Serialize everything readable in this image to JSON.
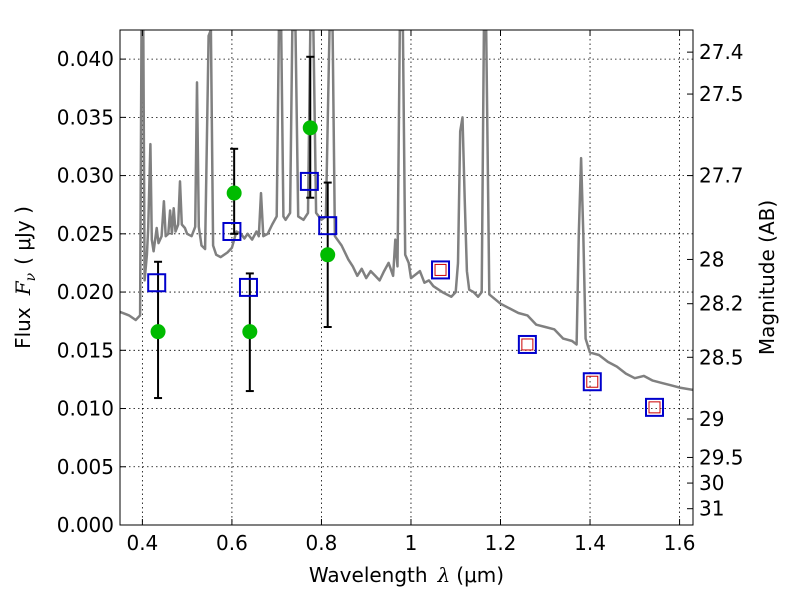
{
  "chart_data": {
    "type": "scatter",
    "xlabel_text": "Wavelength",
    "xlabel_math": "λ",
    "xlabel_unit": "(μm)",
    "ylabel_text": "Flux",
    "ylabel_math": "F",
    "ylabel_sub": "ν",
    "ylabel_unit": "( μJy )",
    "y2label": "Magnitude (AB)",
    "xlim": [
      0.35,
      1.63
    ],
    "ylim": [
      0.0,
      0.0425
    ],
    "grid": true,
    "x_ticks": [
      {
        "v": 0.4,
        "label": "0.4"
      },
      {
        "v": 0.6,
        "label": "0.6"
      },
      {
        "v": 0.8,
        "label": "0.8"
      },
      {
        "v": 1.0,
        "label": "1"
      },
      {
        "v": 1.2,
        "label": "1.2"
      },
      {
        "v": 1.4,
        "label": "1.4"
      },
      {
        "v": 1.6,
        "label": "1.6"
      }
    ],
    "y_ticks": [
      {
        "v": 0.0,
        "label": "0.000"
      },
      {
        "v": 0.005,
        "label": "0.005"
      },
      {
        "v": 0.01,
        "label": "0.010"
      },
      {
        "v": 0.015,
        "label": "0.015"
      },
      {
        "v": 0.02,
        "label": "0.020"
      },
      {
        "v": 0.025,
        "label": "0.025"
      },
      {
        "v": 0.03,
        "label": "0.030"
      },
      {
        "v": 0.035,
        "label": "0.035"
      },
      {
        "v": 0.04,
        "label": "0.040"
      }
    ],
    "mag_ticks": [
      {
        "v": 0.0406,
        "label": "27.4"
      },
      {
        "v": 0.037,
        "label": "27.5"
      },
      {
        "v": 0.03,
        "label": "27.7"
      },
      {
        "v": 0.0228,
        "label": "28"
      },
      {
        "v": 0.019,
        "label": "28.2"
      },
      {
        "v": 0.0144,
        "label": "28.5"
      },
      {
        "v": 0.0091,
        "label": "29"
      },
      {
        "v": 0.0058,
        "label": "29.5"
      },
      {
        "v": 0.0036,
        "label": "30"
      },
      {
        "v": 0.0014,
        "label": "31"
      }
    ],
    "model_spectrum": {
      "color": "#808080",
      "points": [
        [
          0.35,
          0.0183
        ],
        [
          0.37,
          0.018
        ],
        [
          0.385,
          0.0176
        ],
        [
          0.395,
          0.018
        ],
        [
          0.398,
          0.0425
        ],
        [
          0.402,
          0.0425
        ],
        [
          0.405,
          0.021
        ],
        [
          0.41,
          0.0232
        ],
        [
          0.413,
          0.0255
        ],
        [
          0.418,
          0.0327
        ],
        [
          0.421,
          0.0245
        ],
        [
          0.425,
          0.0235
        ],
        [
          0.432,
          0.0255
        ],
        [
          0.436,
          0.0242
        ],
        [
          0.443,
          0.0248
        ],
        [
          0.448,
          0.0278
        ],
        [
          0.452,
          0.0248
        ],
        [
          0.458,
          0.025
        ],
        [
          0.462,
          0.027
        ],
        [
          0.466,
          0.025
        ],
        [
          0.47,
          0.0272
        ],
        [
          0.474,
          0.0252
        ],
        [
          0.48,
          0.0258
        ],
        [
          0.484,
          0.0295
        ],
        [
          0.488,
          0.0258
        ],
        [
          0.495,
          0.0255
        ],
        [
          0.5,
          0.025
        ],
        [
          0.51,
          0.0248
        ],
        [
          0.518,
          0.0256
        ],
        [
          0.522,
          0.038
        ],
        [
          0.526,
          0.0256
        ],
        [
          0.532,
          0.024
        ],
        [
          0.54,
          0.0237
        ],
        [
          0.548,
          0.042
        ],
        [
          0.553,
          0.0425
        ],
        [
          0.558,
          0.024
        ],
        [
          0.565,
          0.0232
        ],
        [
          0.575,
          0.023
        ],
        [
          0.59,
          0.0234
        ],
        [
          0.6,
          0.0238
        ],
        [
          0.61,
          0.0252
        ],
        [
          0.62,
          0.025
        ],
        [
          0.628,
          0.0246
        ],
        [
          0.635,
          0.025
        ],
        [
          0.645,
          0.0245
        ],
        [
          0.655,
          0.0252
        ],
        [
          0.66,
          0.0248
        ],
        [
          0.665,
          0.0285
        ],
        [
          0.67,
          0.0248
        ],
        [
          0.68,
          0.025
        ],
        [
          0.69,
          0.0258
        ],
        [
          0.7,
          0.0265
        ],
        [
          0.705,
          0.0425
        ],
        [
          0.71,
          0.0425
        ],
        [
          0.715,
          0.0265
        ],
        [
          0.72,
          0.0262
        ],
        [
          0.73,
          0.0268
        ],
        [
          0.735,
          0.0425
        ],
        [
          0.742,
          0.0425
        ],
        [
          0.748,
          0.0265
        ],
        [
          0.76,
          0.0262
        ],
        [
          0.77,
          0.0268
        ],
        [
          0.775,
          0.0425
        ],
        [
          0.782,
          0.0425
        ],
        [
          0.788,
          0.0268
        ],
        [
          0.8,
          0.0262
        ],
        [
          0.81,
          0.0265
        ],
        [
          0.818,
          0.0425
        ],
        [
          0.825,
          0.0425
        ],
        [
          0.83,
          0.0248
        ],
        [
          0.845,
          0.024
        ],
        [
          0.86,
          0.0228
        ],
        [
          0.87,
          0.0222
        ],
        [
          0.88,
          0.0214
        ],
        [
          0.89,
          0.022
        ],
        [
          0.9,
          0.0212
        ],
        [
          0.91,
          0.0218
        ],
        [
          0.92,
          0.0214
        ],
        [
          0.93,
          0.021
        ],
        [
          0.94,
          0.0218
        ],
        [
          0.95,
          0.0225
        ],
        [
          0.96,
          0.0214
        ],
        [
          0.965,
          0.0245
        ],
        [
          0.97,
          0.0222
        ],
        [
          0.975,
          0.0425
        ],
        [
          0.982,
          0.0425
        ],
        [
          0.987,
          0.0232
        ],
        [
          0.995,
          0.0225
        ],
        [
          1.0,
          0.0212
        ],
        [
          1.01,
          0.0215
        ],
        [
          1.02,
          0.0218
        ],
        [
          1.03,
          0.0208
        ],
        [
          1.04,
          0.021
        ],
        [
          1.05,
          0.0205
        ],
        [
          1.07,
          0.02
        ],
        [
          1.09,
          0.0196
        ],
        [
          1.1,
          0.02
        ],
        [
          1.105,
          0.0225
        ],
        [
          1.11,
          0.0338
        ],
        [
          1.115,
          0.035
        ],
        [
          1.12,
          0.028
        ],
        [
          1.125,
          0.0218
        ],
        [
          1.13,
          0.0202
        ],
        [
          1.14,
          0.02
        ],
        [
          1.15,
          0.0196
        ],
        [
          1.158,
          0.02
        ],
        [
          1.163,
          0.0425
        ],
        [
          1.168,
          0.0425
        ],
        [
          1.175,
          0.0198
        ],
        [
          1.2,
          0.019
        ],
        [
          1.22,
          0.0186
        ],
        [
          1.24,
          0.0182
        ],
        [
          1.26,
          0.018
        ],
        [
          1.28,
          0.0172
        ],
        [
          1.3,
          0.017
        ],
        [
          1.32,
          0.0168
        ],
        [
          1.34,
          0.016
        ],
        [
          1.36,
          0.0158
        ],
        [
          1.37,
          0.0155
        ],
        [
          1.375,
          0.025
        ],
        [
          1.38,
          0.0315
        ],
        [
          1.385,
          0.025
        ],
        [
          1.39,
          0.016
        ],
        [
          1.4,
          0.0148
        ],
        [
          1.42,
          0.0146
        ],
        [
          1.44,
          0.014
        ],
        [
          1.46,
          0.0136
        ],
        [
          1.48,
          0.013
        ],
        [
          1.5,
          0.0126
        ],
        [
          1.52,
          0.0128
        ],
        [
          1.54,
          0.0124
        ],
        [
          1.56,
          0.0122
        ],
        [
          1.58,
          0.012
        ],
        [
          1.6,
          0.0118
        ],
        [
          1.63,
          0.0116
        ]
      ]
    },
    "observed_flux": {
      "color": "#00bb00",
      "points": [
        {
          "x": 0.435,
          "y": 0.0166,
          "err_low": 0.0109,
          "err_high": 0.0226
        },
        {
          "x": 0.605,
          "y": 0.0285,
          "err_low": 0.025,
          "err_high": 0.0323
        },
        {
          "x": 0.64,
          "y": 0.0166,
          "err_low": 0.0115,
          "err_high": 0.0216
        },
        {
          "x": 0.775,
          "y": 0.0341,
          "err_low": 0.0281,
          "err_high": 0.0402
        },
        {
          "x": 0.814,
          "y": 0.0232,
          "err_low": 0.017,
          "err_high": 0.0294
        }
      ]
    },
    "model_bandpass_flux": {
      "color": "#0000cc",
      "points": [
        {
          "x": 0.432,
          "y": 0.0208
        },
        {
          "x": 0.6,
          "y": 0.0252
        },
        {
          "x": 0.637,
          "y": 0.0204
        },
        {
          "x": 0.773,
          "y": 0.0295
        },
        {
          "x": 0.814,
          "y": 0.0257
        },
        {
          "x": 1.066,
          "y": 0.0219
        },
        {
          "x": 1.26,
          "y": 0.0155
        },
        {
          "x": 1.405,
          "y": 0.0123
        },
        {
          "x": 1.544,
          "y": 0.0101
        }
      ]
    },
    "upper_limit_flux": {
      "color": "#cc0000",
      "points": [
        {
          "x": 1.066,
          "y": 0.0219
        },
        {
          "x": 1.26,
          "y": 0.0155
        },
        {
          "x": 1.405,
          "y": 0.0123
        },
        {
          "x": 1.544,
          "y": 0.0101
        }
      ]
    }
  }
}
